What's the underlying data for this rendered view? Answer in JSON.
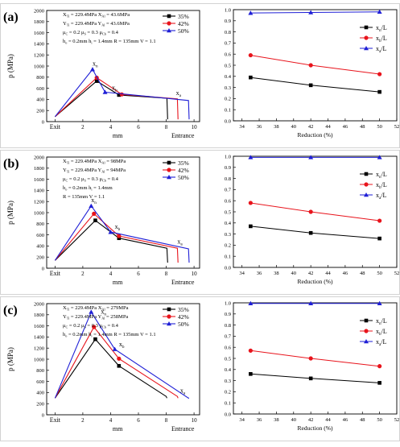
{
  "rows": [
    {
      "label": "(a)",
      "params": [
        "X_{Ti} = 229.4MPa   X_{Al} = 43.6MPa",
        "Y_{Ti} = 229.4MPa   Y_{Al} = 43.6MPa",
        "μ_{C} = 0.2   μ_{S} = 0.3   μ_{Cb} = 0.4",
        "h_{o} = 0.2mm   h_{i} = 1.4mm   R = 135mm   V = 1.1"
      ]
    },
    {
      "label": "(b)",
      "params": [
        "X_{Ti} = 229.4MPa   X_{Al} = 98MPa",
        "Y_{Ti} = 229.4MPa   Y_{Al} = 94MPa",
        "μ_{C} = 0.2   μ_{S} = 0.3   μ_{Cb} = 0.4",
        "h_{o} = 0.2mm   h_{i} = 1.4mm",
        "R = 135mm   V = 1.1"
      ]
    },
    {
      "label": "(c)",
      "params": [
        "X_{Ti} = 229.4MPa   X_{Al} = 279MPa",
        "Y_{Ti} = 229.4MPa   Y_{Al} = 258MPa",
        "μ_{C} = 0.2   μ_{S} = 0.3   μ_{Cb} = 0.4",
        "h_{o} = 0.2mm   h_{i} = 1.4mm   R = 135mm   V = 1.1"
      ]
    }
  ],
  "colors": {
    "r35": "#000000",
    "r42": "#e8141c",
    "r50": "#1f1fd6"
  },
  "chart_data": [
    {
      "type": "line",
      "row": 0,
      "panel": "pressure",
      "ylabel": "p (MPa)",
      "xlabel": "mm",
      "xlim": [
        -0.6,
        10.4
      ],
      "ylim": [
        0,
        2000
      ],
      "yticks": [
        0,
        200,
        400,
        600,
        800,
        1000,
        1200,
        1400,
        1600,
        1800,
        2000
      ],
      "xticks": [
        0,
        2,
        4,
        6,
        8,
        10
      ],
      "xticklabels": [
        {
          "x": 0,
          "text": "Exit"
        },
        {
          "x": 2,
          "text": "2"
        },
        {
          "x": 4,
          "text": "4"
        },
        {
          "x": 6,
          "text": "6"
        },
        {
          "x": 8,
          "text": "8"
        },
        {
          "x": 10,
          "text": "10"
        }
      ],
      "end_label": {
        "x": 9.2,
        "text": "Entrance"
      },
      "series": [
        {
          "name": "35%",
          "color": "r35",
          "x": [
            0,
            3.0,
            4.6,
            8.05,
            8.1
          ],
          "y": [
            90,
            730,
            480,
            420,
            40
          ]
        },
        {
          "name": "42%",
          "color": "r42",
          "x": [
            0,
            3.0,
            4.8,
            8.8,
            8.85
          ],
          "y": [
            90,
            790,
            490,
            410,
            40
          ]
        },
        {
          "name": "50%",
          "color": "r50",
          "x": [
            0,
            2.7,
            3.6,
            9.6,
            9.65
          ],
          "y": [
            90,
            940,
            530,
            380,
            40
          ]
        }
      ],
      "annotations": [
        {
          "text": "x_{n}",
          "x": 2.7,
          "y": 1010
        },
        {
          "text": "x_{b}",
          "x": 4.1,
          "y": 570
        },
        {
          "text": "x_{a}",
          "x": 8.7,
          "y": 480
        }
      ]
    },
    {
      "type": "line",
      "row": 0,
      "panel": "ratio",
      "xlabel": "Reduction (%)",
      "xlim": [
        33,
        52
      ],
      "ylim": [
        0,
        1.0
      ],
      "xticks": [
        34,
        36,
        38,
        40,
        42,
        44,
        46,
        48,
        50,
        52
      ],
      "yticks": [
        0,
        0.1,
        0.2,
        0.3,
        0.4,
        0.5,
        0.6,
        0.7,
        0.8,
        0.9,
        1.0
      ],
      "x": [
        35,
        42,
        50
      ],
      "series": [
        {
          "name": "x_{n}/L",
          "color": "r35",
          "marker": "square",
          "values": [
            0.39,
            0.32,
            0.26
          ]
        },
        {
          "name": "x_{b}/L",
          "color": "r42",
          "marker": "circle",
          "values": [
            0.59,
            0.5,
            0.42
          ]
        },
        {
          "name": "x_{a}/L",
          "color": "r50",
          "marker": "triangle",
          "values": [
            0.97,
            0.975,
            0.98
          ]
        }
      ]
    },
    {
      "type": "line",
      "row": 1,
      "panel": "pressure",
      "ylabel": "p (MPa)",
      "xlabel": "mm",
      "xlim": [
        -0.6,
        10.4
      ],
      "ylim": [
        0,
        2000
      ],
      "yticks": [
        0,
        200,
        400,
        600,
        800,
        1000,
        1200,
        1400,
        1600,
        1800,
        2000
      ],
      "xticks": [
        0,
        2,
        4,
        6,
        8,
        10
      ],
      "xticklabels": [
        {
          "x": 0,
          "text": "Exit"
        },
        {
          "x": 2,
          "text": "2"
        },
        {
          "x": 4,
          "text": "4"
        },
        {
          "x": 6,
          "text": "6"
        },
        {
          "x": 8,
          "text": "8"
        },
        {
          "x": 10,
          "text": "10"
        }
      ],
      "end_label": {
        "x": 9.2,
        "text": "Entrance"
      },
      "series": [
        {
          "name": "35%",
          "color": "r35",
          "x": [
            0,
            2.9,
            4.6,
            8.05,
            8.1
          ],
          "y": [
            140,
            860,
            540,
            360,
            100
          ]
        },
        {
          "name": "42%",
          "color": "r42",
          "x": [
            0,
            2.8,
            4.6,
            8.8,
            8.85
          ],
          "y": [
            140,
            980,
            580,
            360,
            100
          ]
        },
        {
          "name": "50%",
          "color": "r50",
          "x": [
            0,
            2.6,
            4.0,
            9.6,
            9.65
          ],
          "y": [
            140,
            1120,
            650,
            350,
            100
          ]
        }
      ],
      "annotations": [
        {
          "text": "x_{n}",
          "x": 2.6,
          "y": 1190
        },
        {
          "text": "x_{b}",
          "x": 4.3,
          "y": 710
        },
        {
          "text": "x_{a}",
          "x": 8.8,
          "y": 440
        }
      ]
    },
    {
      "type": "line",
      "row": 1,
      "panel": "ratio",
      "xlabel": "Reduction (%)",
      "xlim": [
        33,
        52
      ],
      "ylim": [
        0,
        1.0
      ],
      "xticks": [
        34,
        36,
        38,
        40,
        42,
        44,
        46,
        48,
        50,
        52
      ],
      "yticks": [
        0,
        0.1,
        0.2,
        0.3,
        0.4,
        0.5,
        0.6,
        0.7,
        0.8,
        0.9,
        1.0
      ],
      "x": [
        35,
        42,
        50
      ],
      "series": [
        {
          "name": "x_{n}/L",
          "color": "r35",
          "marker": "square",
          "values": [
            0.37,
            0.31,
            0.26
          ]
        },
        {
          "name": "x_{b}/L",
          "color": "r42",
          "marker": "circle",
          "values": [
            0.58,
            0.5,
            0.42
          ]
        },
        {
          "name": "x_{a}/L",
          "color": "r50",
          "marker": "triangle",
          "values": [
            0.99,
            0.99,
            0.99
          ]
        }
      ]
    },
    {
      "type": "line",
      "row": 2,
      "panel": "pressure",
      "ylabel": "p (MPa)",
      "xlabel": "mm",
      "xlim": [
        -0.6,
        10.4
      ],
      "ylim": [
        0,
        2000
      ],
      "yticks": [
        0,
        200,
        400,
        600,
        800,
        1000,
        1200,
        1400,
        1600,
        1800,
        2000
      ],
      "xticks": [
        0,
        2,
        4,
        6,
        8,
        10
      ],
      "xticklabels": [
        {
          "x": 0,
          "text": "Exit"
        },
        {
          "x": 2,
          "text": "2"
        },
        {
          "x": 4,
          "text": "4"
        },
        {
          "x": 6,
          "text": "6"
        },
        {
          "x": 8,
          "text": "8"
        },
        {
          "x": 10,
          "text": "10"
        }
      ],
      "end_label": {
        "x": 9.2,
        "text": "Entrance"
      },
      "series": [
        {
          "name": "35%",
          "color": "r35",
          "x": [
            0,
            2.9,
            4.6,
            8.0,
            8.05
          ],
          "y": [
            300,
            1360,
            880,
            330,
            300
          ]
        },
        {
          "name": "42%",
          "color": "r42",
          "x": [
            0,
            2.8,
            4.6,
            8.8,
            8.85
          ],
          "y": [
            300,
            1580,
            1010,
            330,
            300
          ]
        },
        {
          "name": "50%",
          "color": "r50",
          "x": [
            0,
            2.6,
            4.3,
            9.6,
            9.65
          ],
          "y": [
            300,
            1850,
            1180,
            300,
            300
          ]
        }
      ],
      "annotations": [
        {
          "text": "x_{n}",
          "x": 3.3,
          "y": 1820
        },
        {
          "text": "x_{b}",
          "x": 4.6,
          "y": 1230
        },
        {
          "text": "x_{a}",
          "x": 9.0,
          "y": 400
        }
      ]
    },
    {
      "type": "line",
      "row": 2,
      "panel": "ratio",
      "xlabel": "Reduction (%)",
      "xlim": [
        33,
        52
      ],
      "ylim": [
        0,
        1.0
      ],
      "xticks": [
        34,
        36,
        38,
        40,
        42,
        44,
        46,
        48,
        50,
        52
      ],
      "yticks": [
        0,
        0.1,
        0.2,
        0.3,
        0.4,
        0.5,
        0.6,
        0.7,
        0.8,
        0.9,
        1.0
      ],
      "x": [
        35,
        42,
        50
      ],
      "series": [
        {
          "name": "x_{n}/L",
          "color": "r35",
          "marker": "square",
          "values": [
            0.36,
            0.32,
            0.28
          ]
        },
        {
          "name": "x_{b}/L",
          "color": "r42",
          "marker": "circle",
          "values": [
            0.57,
            0.5,
            0.43
          ]
        },
        {
          "name": "x_{a}/L",
          "color": "r50",
          "marker": "triangle",
          "values": [
            0.995,
            0.995,
            0.995
          ]
        }
      ]
    }
  ]
}
